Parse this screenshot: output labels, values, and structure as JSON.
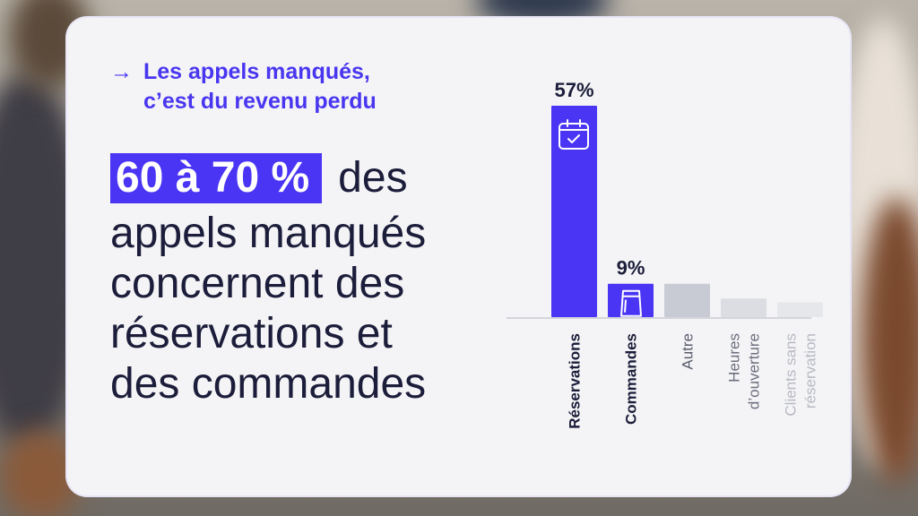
{
  "kicker": {
    "arrow": "→",
    "line1": "Les appels manqués,",
    "line2": "c’est du revenu perdu"
  },
  "headline": {
    "highlight": "60 à 70 %",
    "line1_rest": "des",
    "line2": "appels manqués",
    "line3": "concernent des",
    "line4": "réservations et",
    "line5": "des commandes"
  },
  "colors": {
    "accent": "#4a35f5",
    "bar_grey": "#c9cbd4",
    "bar_light": "#dcdde3",
    "bar_lighter": "#e6e7eb",
    "text_dark": "#1c1d3a",
    "card_bg": "#f4f4f6"
  },
  "chart_data": {
    "type": "bar",
    "categories": [
      "Réservations",
      "Commandes",
      "Autre",
      "Heures d’ouverture",
      "Clients sans réservation"
    ],
    "category_lines": [
      [
        "Réservations"
      ],
      [
        "Commandes"
      ],
      [
        "Autre"
      ],
      [
        "Heures",
        "d’ouverture"
      ],
      [
        "Clients sans",
        "réservation"
      ]
    ],
    "values": [
      57,
      9,
      9,
      5,
      4
    ],
    "value_labels": [
      "57%",
      "9%",
      "",
      "",
      ""
    ],
    "highlighted": [
      true,
      true,
      false,
      false,
      false
    ],
    "icons": [
      "calendar-check-icon",
      "shopping-bag-icon",
      null,
      null,
      null
    ],
    "ylim": [
      0,
      57
    ],
    "grid": false,
    "title": "",
    "xlabel": "",
    "ylabel": ""
  }
}
